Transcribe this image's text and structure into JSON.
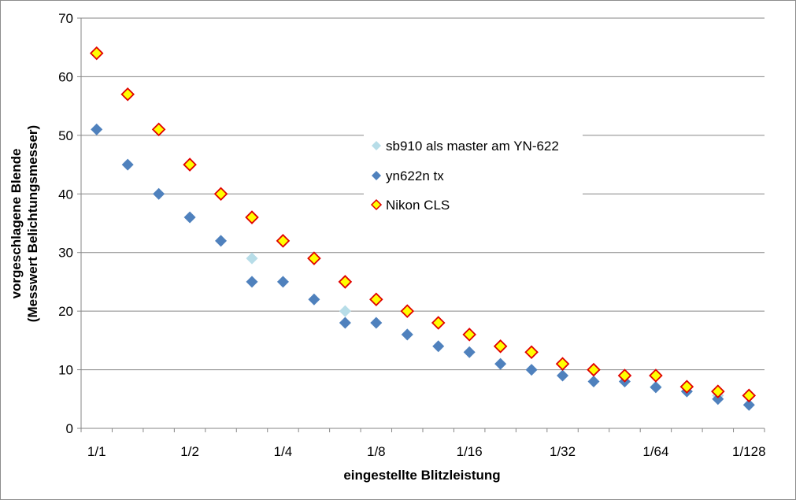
{
  "chart_data": {
    "type": "scatter",
    "title": "",
    "xlabel": "eingestellte Blitzleistung",
    "ylabel_line1": "vorgeschlagene Blende",
    "ylabel_line2": "(Messwert Belichtungsmesser)",
    "ylim": [
      0,
      70
    ],
    "yticks": [
      "0",
      "10",
      "20",
      "30",
      "40",
      "50",
      "60",
      "70"
    ],
    "xlim": [
      0.5,
      22.5
    ],
    "x_tick_labels": [
      {
        "x": 1,
        "label": "1/1"
      },
      {
        "x": 4,
        "label": "1/2"
      },
      {
        "x": 7,
        "label": "1/4"
      },
      {
        "x": 10,
        "label": "1/8"
      },
      {
        "x": 13,
        "label": "1/16"
      },
      {
        "x": 16,
        "label": "1/32"
      },
      {
        "x": 19,
        "label": "1/64"
      },
      {
        "x": 22,
        "label": "1/128"
      }
    ],
    "grid": "horizontal",
    "legend_position": "center-right",
    "series": [
      {
        "name": "sb910 als master am YN-622",
        "color": "#b7dde8",
        "marker": "diamond",
        "points": [
          [
            6,
            29
          ],
          [
            9,
            20
          ],
          [
            11,
            16
          ],
          [
            19,
            7.1
          ],
          [
            20,
            6.3
          ],
          [
            21,
            5.6
          ]
        ]
      },
      {
        "name": "yn622n tx",
        "color": "#4f81bd",
        "marker": "diamond",
        "points": [
          [
            1,
            51
          ],
          [
            2,
            45
          ],
          [
            3,
            40
          ],
          [
            4,
            36
          ],
          [
            5,
            32
          ],
          [
            6,
            25
          ],
          [
            7,
            25
          ],
          [
            8,
            22
          ],
          [
            9,
            18
          ],
          [
            10,
            18
          ],
          [
            11,
            16
          ],
          [
            12,
            14
          ],
          [
            13,
            13
          ],
          [
            14,
            11
          ],
          [
            15,
            10
          ],
          [
            16,
            9
          ],
          [
            17,
            8
          ],
          [
            18,
            8
          ],
          [
            19,
            7
          ],
          [
            20,
            6.3
          ],
          [
            21,
            5
          ],
          [
            22,
            4
          ]
        ]
      },
      {
        "name": "Nikon CLS",
        "color": "#ffff00",
        "stroke": "#e00000",
        "marker": "diamond",
        "points": [
          [
            1,
            64
          ],
          [
            2,
            57
          ],
          [
            3,
            51
          ],
          [
            4,
            45
          ],
          [
            5,
            40
          ],
          [
            6,
            36
          ],
          [
            7,
            32
          ],
          [
            8,
            29
          ],
          [
            9,
            25
          ],
          [
            10,
            22
          ],
          [
            11,
            20
          ],
          [
            12,
            18
          ],
          [
            13,
            16
          ],
          [
            14,
            14
          ],
          [
            15,
            13
          ],
          [
            16,
            11
          ],
          [
            17,
            10
          ],
          [
            18,
            9
          ],
          [
            19,
            9
          ],
          [
            20,
            7.1
          ],
          [
            21,
            6.3
          ],
          [
            22,
            5.6
          ]
        ]
      }
    ]
  }
}
